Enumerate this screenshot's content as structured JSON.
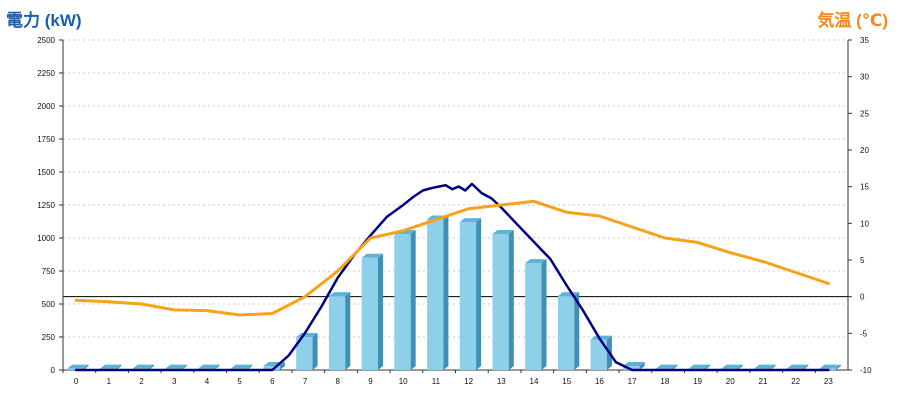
{
  "chart_data": {
    "type": "bar",
    "left_axis_title": "電力 (kW)",
    "right_axis_title": "気温 (℃)",
    "categories": [
      "0",
      "1",
      "2",
      "3",
      "4",
      "5",
      "6",
      "7",
      "8",
      "9",
      "10",
      "11",
      "12",
      "13",
      "14",
      "15",
      "16",
      "17",
      "18",
      "19",
      "20",
      "21",
      "22",
      "23"
    ],
    "left_axis": {
      "ylim": [
        0,
        2500
      ],
      "ticks": [
        0,
        250,
        500,
        750,
        1000,
        1250,
        1500,
        1750,
        2000,
        2250,
        2500
      ]
    },
    "right_axis": {
      "ylim": [
        -10,
        35
      ],
      "ticks": [
        -10,
        -5,
        0,
        5,
        10,
        15,
        20,
        25,
        30,
        35
      ]
    },
    "grid": true,
    "series": [
      {
        "kind": "bar",
        "axis": "left",
        "color": "#8ecfea",
        "values": [
          10,
          10,
          10,
          10,
          10,
          10,
          30,
          250,
          560,
          850,
          1030,
          1140,
          1120,
          1030,
          810,
          560,
          230,
          30,
          10,
          10,
          10,
          10,
          10,
          10
        ]
      },
      {
        "kind": "line",
        "axis": "left",
        "color": "#000080",
        "x": [
          0,
          1,
          2,
          3,
          4,
          5,
          6,
          6.5,
          7,
          7.5,
          8,
          8.5,
          9,
          9.5,
          10,
          10.3,
          10.6,
          10.9,
          11.1,
          11.3,
          11.5,
          11.7,
          11.9,
          12.1,
          12.4,
          12.7,
          13,
          13.5,
          14,
          14.5,
          15,
          15.5,
          16,
          16.5,
          17,
          18,
          19,
          20,
          21,
          22,
          23
        ],
        "values": [
          0,
          0,
          0,
          0,
          0,
          0,
          0,
          110,
          280,
          480,
          700,
          870,
          1020,
          1160,
          1250,
          1310,
          1360,
          1380,
          1390,
          1400,
          1370,
          1390,
          1360,
          1410,
          1340,
          1300,
          1230,
          1100,
          970,
          840,
          640,
          450,
          240,
          60,
          0,
          0,
          0,
          0,
          0,
          0,
          0
        ]
      },
      {
        "kind": "line",
        "axis": "right",
        "color": "#f7a21b",
        "x": [
          0,
          1,
          2,
          3,
          4,
          5,
          6,
          7,
          8,
          9,
          10,
          11,
          12,
          13,
          14,
          15,
          16,
          17,
          18,
          19,
          20,
          21,
          22,
          23
        ],
        "values": [
          -0.5,
          -0.7,
          -1.0,
          -1.8,
          -1.9,
          -2.5,
          -2.3,
          0.0,
          3.5,
          8.0,
          9.0,
          10.5,
          12.0,
          12.5,
          13.0,
          11.5,
          11.0,
          9.5,
          8.0,
          7.4,
          6.0,
          4.8,
          3.3,
          1.8
        ]
      }
    ],
    "reference_line": {
      "axis": "right",
      "value": 0,
      "color": "#000000"
    }
  }
}
